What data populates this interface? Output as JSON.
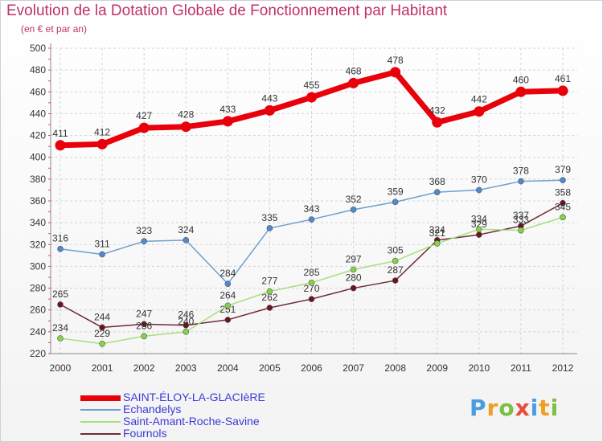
{
  "chart_data": {
    "type": "line",
    "title": "Evolution de la Dotation Globale de Fonctionnement par Habitant",
    "subtitle": "(en € et par an)",
    "x": [
      "2000",
      "2001",
      "2002",
      "2003",
      "2004",
      "2005",
      "2006",
      "2007",
      "2008",
      "2009",
      "2010",
      "2011",
      "2012"
    ],
    "ylim": [
      220,
      500
    ],
    "yticks": [
      220,
      240,
      260,
      280,
      300,
      320,
      340,
      360,
      380,
      400,
      420,
      440,
      460,
      480,
      500
    ],
    "grid": true,
    "series": [
      {
        "name": "SAINT-ÉLOY-LA-GLACIèRE",
        "color": "#e8000b",
        "marker": "#e8000b",
        "values": [
          411,
          412,
          427,
          428,
          433,
          443,
          455,
          468,
          478,
          432,
          442,
          460,
          461
        ]
      },
      {
        "name": "Echandelys",
        "color": "#6f9fcf",
        "marker": "#4c8bd0",
        "values": [
          316,
          311,
          323,
          324,
          284,
          335,
          343,
          352,
          359,
          368,
          370,
          378,
          379
        ]
      },
      {
        "name": "Saint-Amant-Roche-Savine",
        "color": "#a6e07c",
        "marker": "#84d447",
        "values": [
          234,
          229,
          236,
          240,
          264,
          277,
          285,
          297,
          305,
          321,
          334,
          333,
          345
        ]
      },
      {
        "name": "Fournols",
        "color": "#6e2b36",
        "marker": "#6b1420",
        "values": [
          265,
          244,
          247,
          246,
          251,
          262,
          270,
          280,
          287,
          324,
          329,
          337,
          358
        ]
      }
    ]
  },
  "logo": {
    "text": "Proxiti",
    "letters": [
      "P",
      "r",
      "o",
      "x",
      "i",
      "t",
      "i"
    ],
    "colors": [
      "#4a9be0",
      "#f0a020",
      "#7bc043",
      "#e84c3c",
      "#4a9be0",
      "#f0a020",
      "#7bc043"
    ]
  }
}
